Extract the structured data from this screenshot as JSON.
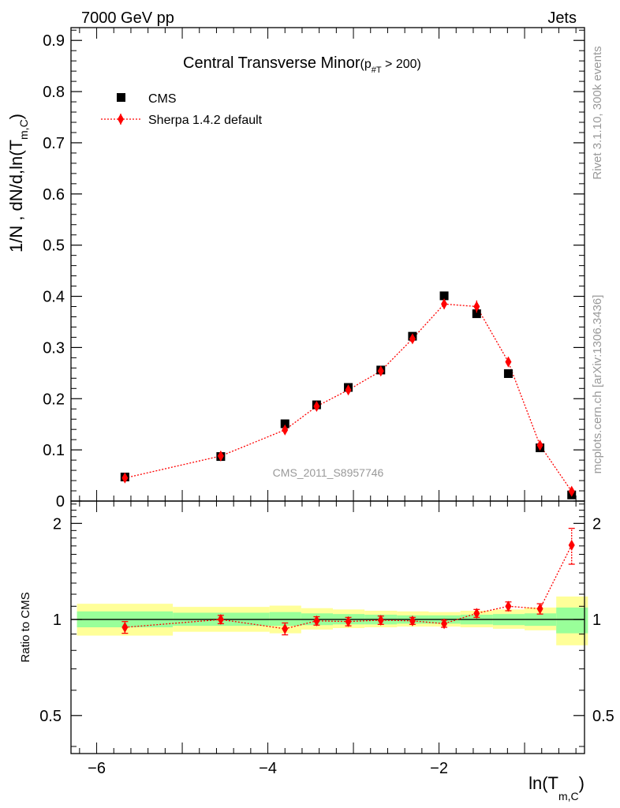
{
  "header": {
    "left": "7000 GeV pp",
    "right": "Jets"
  },
  "side_labels": {
    "rivet": "Rivet 3.1.10,  300k events",
    "mcplots": "mcplots.cern.ch [arXiv:1306.3436]"
  },
  "chart_data": [
    {
      "type": "scatter",
      "title": "Central Transverse Minor",
      "title_cut": "(p",
      "title_cut_sub": "#T",
      "title_cut_rest": "  > 200)",
      "watermark": "CMS_2011_S8957746",
      "ylabel": "1/N , dN/d,ln(T",
      "ylabel_sub": "m,C",
      "ylabel_close": ")",
      "xlim": [
        -6.3,
        -0.3
      ],
      "ylim": [
        0,
        0.925
      ],
      "yticks": [
        "0",
        "0.1",
        "0.2",
        "0.3",
        "0.4",
        "0.5",
        "0.6",
        "0.7",
        "0.8",
        "0.9"
      ],
      "grid": false,
      "legend_position": "top-left",
      "series": [
        {
          "name": "CMS",
          "color": "#000000",
          "marker": "square",
          "x": [
            -5.67,
            -4.55,
            -3.8,
            -3.43,
            -3.06,
            -2.68,
            -2.31,
            -1.94,
            -1.56,
            -1.19,
            -0.82,
            -0.45
          ],
          "y": [
            0.047,
            0.087,
            0.151,
            0.188,
            0.222,
            0.256,
            0.322,
            0.401,
            0.366,
            0.249,
            0.104,
            0.012
          ]
        },
        {
          "name": "Sherpa 1.4.2 default",
          "color": "#ff0000",
          "marker": "diamond",
          "line": "dotted",
          "x": [
            -5.67,
            -4.55,
            -3.8,
            -3.43,
            -3.06,
            -2.68,
            -2.31,
            -1.94,
            -1.56,
            -1.19,
            -0.82,
            -0.45
          ],
          "y": [
            0.045,
            0.088,
            0.139,
            0.185,
            0.217,
            0.254,
            0.317,
            0.385,
            0.38,
            0.272,
            0.109,
            0.019
          ],
          "yerr": [
            0.004,
            0.004,
            0.006,
            0.007,
            0.008,
            0.008,
            0.008,
            0.01,
            0.012,
            0.009,
            0.006,
            0.004
          ]
        }
      ]
    },
    {
      "type": "scatter",
      "ylabel": "Ratio to CMS",
      "xlabel": "ln(T",
      "xlabel_sub": "m,C",
      "xlabel_close": ")",
      "log_y": true,
      "ylim": [
        0.38,
        2.35
      ],
      "yticks": [
        "0.5",
        "1",
        "2"
      ],
      "xticks": [
        "−6",
        "−4",
        "−2"
      ],
      "reference_line": 1,
      "band_colors": {
        "inner": "#99ff99",
        "outer": "#ffff99"
      },
      "bins": [
        {
          "lo": -6.23,
          "hi": -5.11,
          "inner": [
            0.945,
            1.06
          ],
          "outer": [
            0.89,
            1.12
          ]
        },
        {
          "lo": -5.11,
          "hi": -3.98,
          "inner": [
            0.955,
            1.05
          ],
          "outer": [
            0.915,
            1.095
          ]
        },
        {
          "lo": -3.98,
          "hi": -3.61,
          "inner": [
            0.955,
            1.055
          ],
          "outer": [
            0.905,
            1.105
          ]
        },
        {
          "lo": -3.61,
          "hi": -3.24,
          "inner": [
            0.96,
            1.045
          ],
          "outer": [
            0.93,
            1.085
          ]
        },
        {
          "lo": -3.24,
          "hi": -2.87,
          "inner": [
            0.965,
            1.04
          ],
          "outer": [
            0.94,
            1.075
          ]
        },
        {
          "lo": -2.87,
          "hi": -2.49,
          "inner": [
            0.965,
            1.035
          ],
          "outer": [
            0.945,
            1.065
          ]
        },
        {
          "lo": -2.49,
          "hi": -2.12,
          "inner": [
            0.97,
            1.03
          ],
          "outer": [
            0.95,
            1.06
          ]
        },
        {
          "lo": -2.12,
          "hi": -1.75,
          "inner": [
            0.97,
            1.03
          ],
          "outer": [
            0.95,
            1.055
          ]
        },
        {
          "lo": -1.75,
          "hi": -1.37,
          "inner": [
            0.965,
            1.035
          ],
          "outer": [
            0.945,
            1.065
          ]
        },
        {
          "lo": -1.37,
          "hi": -1.0,
          "inner": [
            0.96,
            1.04
          ],
          "outer": [
            0.935,
            1.075
          ]
        },
        {
          "lo": -1.0,
          "hi": -0.63,
          "inner": [
            0.955,
            1.045
          ],
          "outer": [
            0.925,
            1.09
          ]
        },
        {
          "lo": -0.63,
          "hi": -0.26,
          "inner": [
            0.905,
            1.09
          ],
          "outer": [
            0.83,
            1.18
          ]
        }
      ],
      "series": [
        {
          "name": "Sherpa 1.4.2 default",
          "color": "#ff0000",
          "x": [
            -5.67,
            -4.55,
            -3.8,
            -3.43,
            -3.06,
            -2.68,
            -2.31,
            -1.94,
            -1.56,
            -1.19,
            -0.82,
            -0.45
          ],
          "y": [
            0.945,
            1.0,
            0.935,
            0.99,
            0.985,
            0.995,
            0.99,
            0.97,
            1.045,
            1.1,
            1.08,
            1.71
          ],
          "yerr": [
            0.04,
            0.03,
            0.04,
            0.03,
            0.03,
            0.03,
            0.025,
            0.025,
            0.03,
            0.035,
            0.04,
            0.22
          ]
        }
      ]
    }
  ]
}
